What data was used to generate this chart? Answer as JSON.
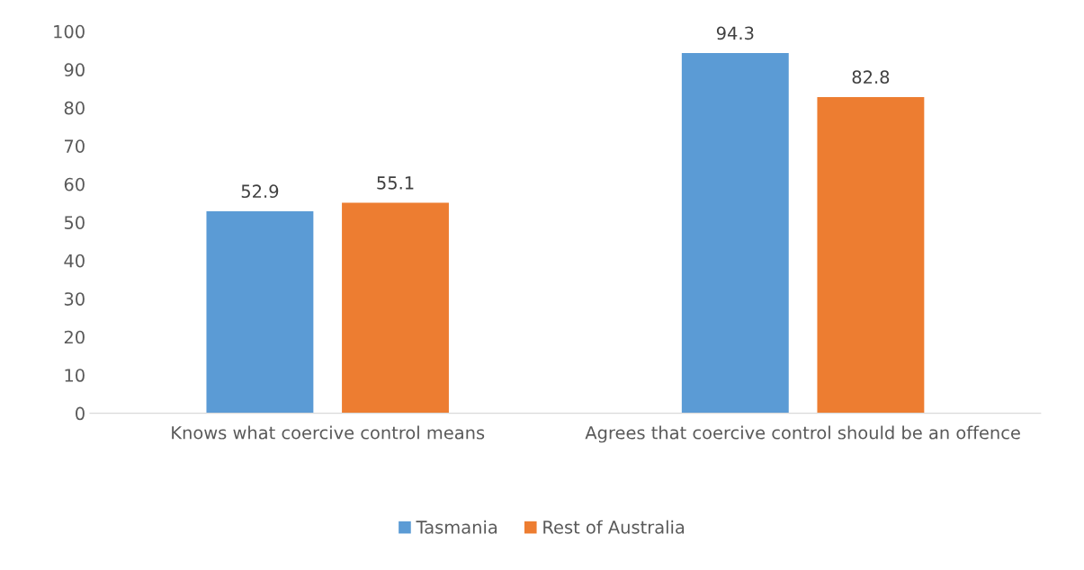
{
  "chart_data": {
    "type": "bar",
    "categories": [
      "Knows what coercive control means",
      "Agrees that coercive control should be an offence"
    ],
    "series": [
      {
        "name": "Tasmania",
        "color": "#5b9bd5",
        "values": [
          52.9,
          94.3
        ]
      },
      {
        "name": "Rest of Australia",
        "color": "#ed7d31",
        "values": [
          55.1,
          82.8
        ]
      }
    ],
    "ylim": [
      0,
      100
    ],
    "yticks": [
      0,
      10,
      20,
      30,
      40,
      50,
      60,
      70,
      80,
      90,
      100
    ],
    "grid": false,
    "legend": "bottom",
    "data_labels": true
  }
}
